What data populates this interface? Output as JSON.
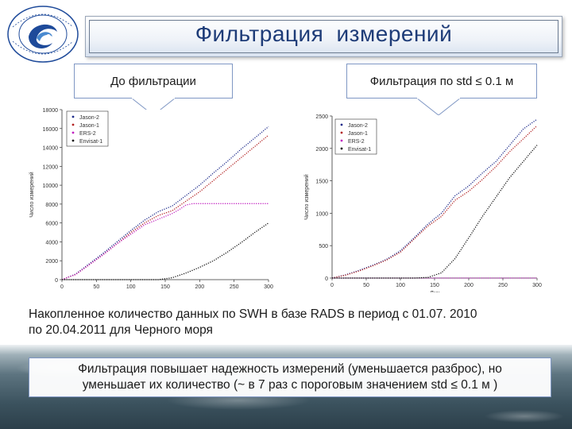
{
  "slide": {
    "title": "Фильтрация  измерений",
    "label_before": "До фильтрации",
    "label_after": "Фильтрация по std ≤ 0.1 м",
    "caption_line1": "Накопленное количество данных по SWH в базе RADS в период с 01.07. 2010",
    "caption_line2": "по 20.04.2011 для Черного моря",
    "conclusion_line1": "Фильтрация повышает надежность измерений (уменьшается разброс), но",
    "conclusion_line2": "уменьшает их количество (~ в 7 раз с пороговым значением std ≤ 0.1 м )"
  },
  "colors": {
    "title_text": "#1e3c78",
    "jason2": "#1c2a8a",
    "jason1": "#b22222",
    "ers2": "#c020c0",
    "envisat1": "#111111"
  },
  "chart_data": [
    {
      "type": "line",
      "x_label": "Дни",
      "y_label": "Число измерений",
      "xlim": [
        0,
        300
      ],
      "ylim": [
        0,
        18000
      ],
      "x_ticks": [
        0,
        50,
        100,
        150,
        200,
        250,
        300
      ],
      "y_ticks": [
        0,
        2000,
        4000,
        6000,
        8000,
        10000,
        12000,
        14000,
        16000,
        18000
      ],
      "x_tick_labels": [
        "0",
        "50",
        "100",
        "150",
        "200",
        "250",
        "300"
      ],
      "y_tick_labels": [
        "0",
        "2000",
        "4000",
        "6000",
        "8000",
        "10000",
        "12000",
        "14000",
        "16000",
        "18000"
      ],
      "legend_position": "top-left",
      "series": [
        {
          "name": "Jason-2",
          "color": "#1c2a8a",
          "x": [
            0,
            20,
            40,
            60,
            80,
            100,
            120,
            140,
            160,
            180,
            200,
            220,
            240,
            260,
            280,
            300
          ],
          "y": [
            0,
            600,
            1700,
            2800,
            4000,
            5200,
            6300,
            7200,
            7800,
            8900,
            10000,
            11300,
            12500,
            13800,
            15000,
            16200
          ]
        },
        {
          "name": "Jason-1",
          "color": "#b22222",
          "x": [
            0,
            20,
            40,
            60,
            80,
            100,
            120,
            140,
            160,
            180,
            200,
            220,
            240,
            260,
            280,
            300
          ],
          "y": [
            0,
            550,
            1600,
            2650,
            3800,
            5000,
            6000,
            6800,
            7300,
            8300,
            9300,
            10500,
            11700,
            12900,
            14100,
            15300
          ]
        },
        {
          "name": "ERS-2",
          "color": "#c020c0",
          "x": [
            0,
            20,
            40,
            60,
            80,
            100,
            120,
            140,
            160,
            170,
            180,
            190,
            200,
            220,
            240,
            260,
            280,
            300
          ],
          "y": [
            0,
            550,
            1600,
            2650,
            3800,
            4800,
            5800,
            6400,
            7000,
            7400,
            7900,
            8050,
            8050,
            8050,
            8050,
            8050,
            8050,
            8050
          ]
        },
        {
          "name": "Envisat-1",
          "color": "#111111",
          "x": [
            0,
            60,
            100,
            140,
            160,
            180,
            200,
            220,
            240,
            260,
            280,
            300
          ],
          "y": [
            0,
            0,
            0,
            0,
            200,
            700,
            1300,
            2000,
            2900,
            3900,
            5000,
            6000
          ]
        }
      ]
    },
    {
      "type": "line",
      "x_label": "Дни",
      "y_label": "Число измерений",
      "xlim": [
        0,
        300
      ],
      "ylim": [
        0,
        2500
      ],
      "x_ticks": [
        0,
        50,
        100,
        150,
        200,
        250,
        300
      ],
      "y_ticks": [
        0,
        500,
        1000,
        1500,
        2000,
        2500
      ],
      "x_tick_labels": [
        "0",
        "50",
        "100",
        "150",
        "200",
        "250",
        "300"
      ],
      "y_tick_labels": [
        "0",
        "500",
        "1000",
        "1500",
        "2000",
        "2500"
      ],
      "legend_position": "top-left",
      "series": [
        {
          "name": "Jason-2",
          "color": "#1c2a8a",
          "x": [
            0,
            20,
            40,
            60,
            80,
            100,
            120,
            140,
            160,
            180,
            200,
            220,
            240,
            260,
            280,
            300
          ],
          "y": [
            0,
            50,
            120,
            200,
            290,
            420,
            620,
            830,
            1000,
            1270,
            1420,
            1620,
            1800,
            2050,
            2300,
            2450
          ]
        },
        {
          "name": "Jason-1",
          "color": "#b22222",
          "x": [
            0,
            20,
            40,
            60,
            80,
            100,
            120,
            140,
            160,
            180,
            200,
            220,
            240,
            260,
            280,
            300
          ],
          "y": [
            0,
            45,
            110,
            190,
            280,
            400,
            600,
            800,
            950,
            1200,
            1340,
            1520,
            1720,
            1950,
            2150,
            2350
          ]
        },
        {
          "name": "ERS-2",
          "color": "#c020c0",
          "x": [
            0,
            300
          ],
          "y": [
            0,
            0
          ]
        },
        {
          "name": "Envisat-1",
          "color": "#111111",
          "x": [
            0,
            80,
            120,
            140,
            160,
            180,
            200,
            220,
            240,
            260,
            280,
            300
          ],
          "y": [
            0,
            0,
            0,
            10,
            80,
            300,
            620,
            950,
            1250,
            1550,
            1800,
            2050
          ]
        }
      ]
    }
  ]
}
